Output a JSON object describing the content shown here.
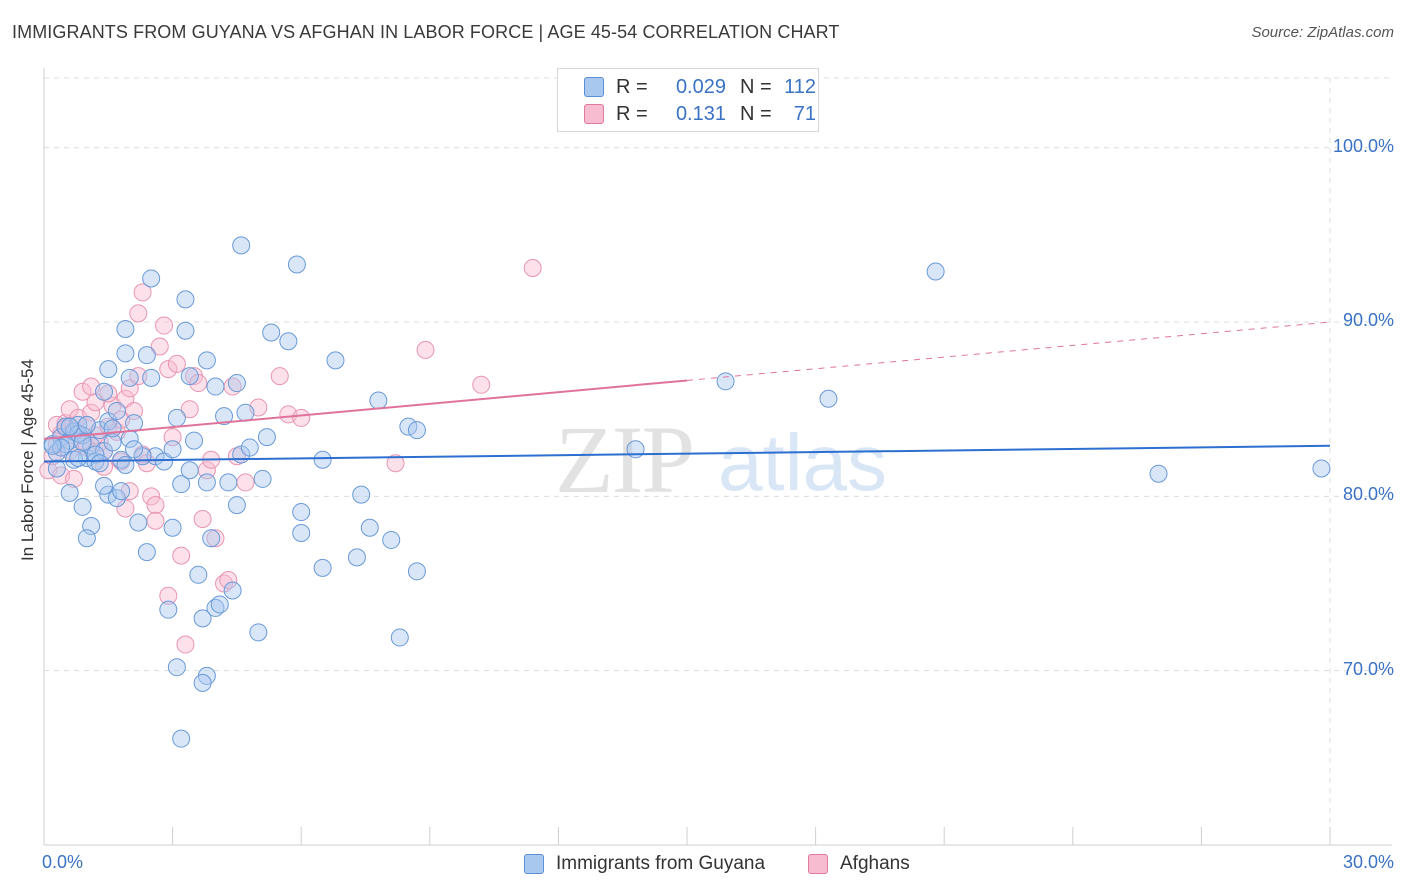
{
  "header": {
    "title": "IMMIGRANTS FROM GUYANA VS AFGHAN IN LABOR FORCE | AGE 45-54 CORRELATION CHART",
    "source": "Source: ZipAtlas.com"
  },
  "legend": {
    "rows": [
      {
        "r_label": "R =",
        "r_value": "0.029",
        "n_label": "N =",
        "n_value": "112",
        "color": "#a9c8f0",
        "border": "#5b8fd6"
      },
      {
        "r_label": "R =",
        "r_value": "0.131",
        "n_label": "N =",
        "n_value": "71",
        "color": "#f8bcd0",
        "border": "#e07aa0"
      }
    ]
  },
  "bottom_legend": {
    "items": [
      {
        "label": "Immigrants from Guyana"
      },
      {
        "label": "Afghans"
      }
    ]
  },
  "chart_data": {
    "type": "scatter",
    "title": "IMMIGRANTS FROM GUYANA VS AFGHAN IN LABOR FORCE | AGE 45-54 CORRELATION CHART",
    "xlabel": "",
    "ylabel": "In Labor Force | Age 45-54",
    "xlim": [
      0,
      30
    ],
    "ylim": [
      60.0,
      104.0
    ],
    "x_tick_labels": [
      "0.0%",
      "30.0%"
    ],
    "y_ticks": [
      70,
      80,
      90,
      100
    ],
    "y_tick_labels": [
      "70.0%",
      "80.0%",
      "90.0%",
      "100.0%"
    ],
    "grid": true,
    "watermark": {
      "zip": "ZIP",
      "atlas": "atlas"
    },
    "colors": {
      "blue_fill": "#a9c8f0",
      "blue_stroke": "#6a9ad8",
      "blue_line": "#2c6fd0",
      "pink_fill": "#f8bcd0",
      "pink_stroke": "#e895b2",
      "pink_line": "#e0739c"
    },
    "series": [
      {
        "name": "Immigrants from Guyana",
        "trend": {
          "x": [
            0,
            30
          ],
          "y": [
            82.0,
            82.9
          ],
          "dashed_from": null
        },
        "points": [
          [
            0.2,
            83.0
          ],
          [
            0.3,
            82.5
          ],
          [
            0.4,
            83.4
          ],
          [
            0.5,
            84.0
          ],
          [
            0.6,
            83.2
          ],
          [
            0.7,
            83.7
          ],
          [
            0.8,
            84.1
          ],
          [
            0.9,
            83.5
          ],
          [
            1.0,
            82.2
          ],
          [
            1.1,
            82.9
          ],
          [
            1.2,
            82.0
          ],
          [
            1.3,
            83.8
          ],
          [
            1.4,
            82.6
          ],
          [
            1.5,
            84.3
          ],
          [
            1.6,
            83.1
          ],
          [
            1.7,
            84.9
          ],
          [
            1.8,
            82.1
          ],
          [
            1.9,
            81.8
          ],
          [
            2.0,
            83.3
          ],
          [
            2.1,
            84.2
          ],
          [
            0.3,
            81.6
          ],
          [
            0.7,
            82.1
          ],
          [
            0.6,
            80.2
          ],
          [
            0.9,
            79.4
          ],
          [
            1.1,
            78.3
          ],
          [
            1.0,
            77.6
          ],
          [
            1.5,
            80.1
          ],
          [
            1.7,
            79.9
          ],
          [
            1.8,
            80.3
          ],
          [
            2.2,
            78.5
          ],
          [
            2.4,
            76.8
          ],
          [
            2.6,
            82.3
          ],
          [
            2.8,
            82.0
          ],
          [
            3.0,
            82.7
          ],
          [
            3.1,
            84.5
          ],
          [
            3.2,
            80.7
          ],
          [
            3.0,
            78.2
          ],
          [
            2.9,
            73.5
          ],
          [
            3.4,
            81.5
          ],
          [
            3.5,
            83.2
          ],
          [
            3.6,
            75.5
          ],
          [
            3.7,
            73.0
          ],
          [
            3.8,
            80.8
          ],
          [
            3.9,
            77.6
          ],
          [
            4.0,
            73.6
          ],
          [
            4.1,
            73.8
          ],
          [
            4.2,
            84.6
          ],
          [
            4.3,
            80.8
          ],
          [
            4.4,
            74.6
          ],
          [
            4.5,
            79.5
          ],
          [
            4.6,
            82.4
          ],
          [
            4.7,
            84.8
          ],
          [
            4.8,
            82.8
          ],
          [
            5.0,
            72.2
          ],
          [
            5.1,
            81.0
          ],
          [
            5.2,
            83.4
          ],
          [
            5.3,
            89.4
          ],
          [
            5.7,
            88.9
          ],
          [
            5.9,
            93.3
          ],
          [
            6.0,
            79.1
          ],
          [
            6.0,
            77.9
          ],
          [
            6.5,
            75.9
          ],
          [
            6.5,
            82.1
          ],
          [
            6.8,
            87.8
          ],
          [
            7.3,
            76.5
          ],
          [
            7.4,
            80.1
          ],
          [
            7.6,
            78.2
          ],
          [
            7.8,
            85.5
          ],
          [
            8.1,
            77.5
          ],
          [
            8.3,
            71.9
          ],
          [
            8.5,
            84.0
          ],
          [
            8.7,
            83.8
          ],
          [
            8.7,
            75.7
          ],
          [
            4.6,
            94.4
          ],
          [
            2.5,
            92.5
          ],
          [
            3.3,
            91.3
          ],
          [
            1.9,
            89.6
          ],
          [
            3.3,
            89.5
          ],
          [
            1.9,
            88.2
          ],
          [
            2.4,
            88.1
          ],
          [
            3.8,
            87.8
          ],
          [
            1.5,
            87.3
          ],
          [
            2.0,
            86.8
          ],
          [
            2.5,
            86.8
          ],
          [
            3.4,
            86.9
          ],
          [
            4.0,
            86.3
          ],
          [
            4.5,
            86.5
          ],
          [
            1.4,
            86.0
          ],
          [
            3.1,
            70.2
          ],
          [
            3.8,
            69.7
          ],
          [
            3.7,
            69.3
          ],
          [
            3.2,
            66.1
          ],
          [
            13.8,
            82.7
          ],
          [
            15.9,
            86.6
          ],
          [
            18.3,
            85.6
          ],
          [
            20.8,
            92.9
          ],
          [
            26.0,
            81.3
          ],
          [
            29.8,
            81.6
          ],
          [
            0.5,
            83.0
          ],
          [
            0.8,
            83.6
          ],
          [
            1.2,
            82.4
          ],
          [
            1.0,
            84.1
          ],
          [
            2.3,
            82.3
          ],
          [
            1.6,
            83.9
          ],
          [
            0.4,
            82.8
          ],
          [
            0.6,
            84.0
          ],
          [
            1.3,
            81.9
          ],
          [
            0.9,
            83.1
          ],
          [
            2.1,
            82.7
          ],
          [
            1.4,
            80.6
          ],
          [
            0.2,
            82.9
          ],
          [
            0.8,
            82.2
          ]
        ]
      },
      {
        "name": "Afghans",
        "trend": {
          "x": [
            0,
            30
          ],
          "y": [
            83.3,
            90.0
          ],
          "dashed_from": 15.0
        },
        "points": [
          [
            0.1,
            81.5
          ],
          [
            0.2,
            82.3
          ],
          [
            0.3,
            83.0
          ],
          [
            0.4,
            83.6
          ],
          [
            0.5,
            84.2
          ],
          [
            0.6,
            85.0
          ],
          [
            0.7,
            83.8
          ],
          [
            0.8,
            84.5
          ],
          [
            0.9,
            83.2
          ],
          [
            1.0,
            82.8
          ],
          [
            1.1,
            84.8
          ],
          [
            1.2,
            85.4
          ],
          [
            1.3,
            83.1
          ],
          [
            1.4,
            82.6
          ],
          [
            1.5,
            84.0
          ],
          [
            1.6,
            85.2
          ],
          [
            1.7,
            83.7
          ],
          [
            1.8,
            84.4
          ],
          [
            1.9,
            85.6
          ],
          [
            2.0,
            86.2
          ],
          [
            2.1,
            84.9
          ],
          [
            2.2,
            86.9
          ],
          [
            2.3,
            82.4
          ],
          [
            2.4,
            81.9
          ],
          [
            2.5,
            80.0
          ],
          [
            2.6,
            79.5
          ],
          [
            2.7,
            88.6
          ],
          [
            2.8,
            89.8
          ],
          [
            2.9,
            87.3
          ],
          [
            3.0,
            83.4
          ],
          [
            3.1,
            87.6
          ],
          [
            3.2,
            76.6
          ],
          [
            3.3,
            71.5
          ],
          [
            3.4,
            85.0
          ],
          [
            3.5,
            86.9
          ],
          [
            3.6,
            86.5
          ],
          [
            3.7,
            78.7
          ],
          [
            3.8,
            81.5
          ],
          [
            3.9,
            82.1
          ],
          [
            4.0,
            77.6
          ],
          [
            4.2,
            75.0
          ],
          [
            4.3,
            75.2
          ],
          [
            4.4,
            86.3
          ],
          [
            4.5,
            82.3
          ],
          [
            4.7,
            80.8
          ],
          [
            5.0,
            85.1
          ],
          [
            5.5,
            86.9
          ],
          [
            5.7,
            84.7
          ],
          [
            6.0,
            84.5
          ],
          [
            8.2,
            81.9
          ],
          [
            8.9,
            88.4
          ],
          [
            10.2,
            86.4
          ],
          [
            11.4,
            93.1
          ],
          [
            2.3,
            91.7
          ],
          [
            2.2,
            90.5
          ],
          [
            1.9,
            79.3
          ],
          [
            0.4,
            81.2
          ],
          [
            0.6,
            82.6
          ],
          [
            1.0,
            84.1
          ],
          [
            1.2,
            83.5
          ],
          [
            1.5,
            85.9
          ],
          [
            1.8,
            82.0
          ],
          [
            2.0,
            80.3
          ],
          [
            2.6,
            78.6
          ],
          [
            2.9,
            74.3
          ],
          [
            0.3,
            84.1
          ],
          [
            0.5,
            83.9
          ],
          [
            0.9,
            86.0
          ],
          [
            1.1,
            86.3
          ],
          [
            1.4,
            81.7
          ],
          [
            0.7,
            81.0
          ]
        ]
      }
    ]
  }
}
